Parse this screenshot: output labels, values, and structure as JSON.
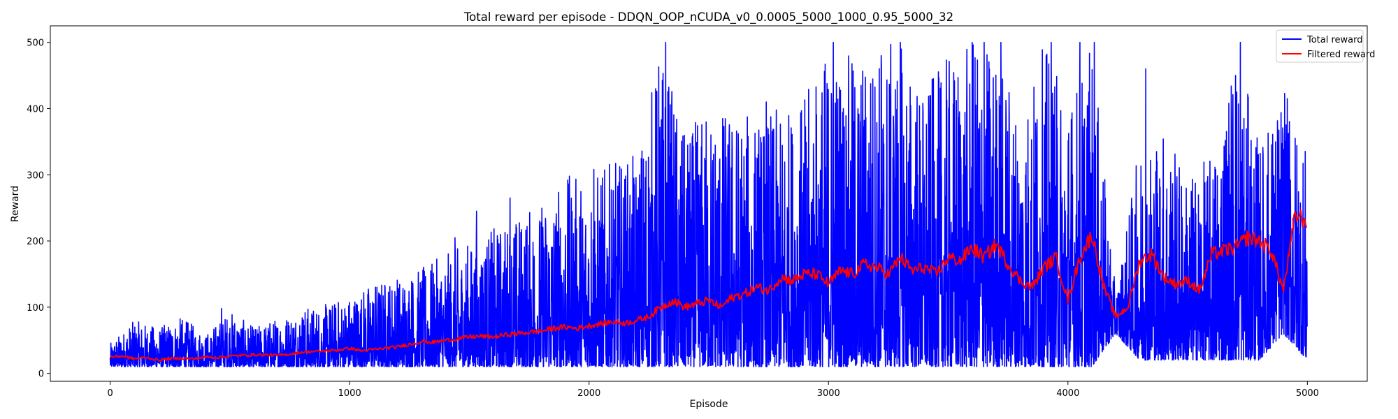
{
  "chart_data": {
    "type": "line",
    "title": "Total reward per episode - DDQN_OOP_nCUDA_v0_0.0005_5000_1000_0.95_5000_32",
    "xlabel": "Episode",
    "ylabel": "Reward",
    "xlim": [
      -250,
      5250
    ],
    "ylim": [
      -12,
      525
    ],
    "xticks": [
      0,
      1000,
      2000,
      3000,
      4000,
      5000
    ],
    "xtick_labels": [
      "0",
      "1000",
      "2000",
      "3000",
      "4000",
      "5000"
    ],
    "yticks": [
      0,
      100,
      200,
      300,
      400,
      500
    ],
    "ytick_labels": [
      "0",
      "100",
      "200",
      "300",
      "400",
      "500"
    ],
    "grid": false,
    "legend_position": "top-right",
    "colors": {
      "total": "#0000ff",
      "filtered": "#ff0000"
    },
    "series": [
      {
        "name": "Total reward",
        "color": "#0000ff",
        "episodes": 5000,
        "envelope": {
          "x": [
            0,
            100,
            200,
            300,
            400,
            500,
            600,
            700,
            800,
            900,
            1000,
            1100,
            1200,
            1300,
            1400,
            1500,
            1600,
            1700,
            1800,
            1900,
            2000,
            2100,
            2200,
            2300,
            2400,
            2500,
            2600,
            2700,
            2800,
            2900,
            3000,
            3100,
            3200,
            3300,
            3400,
            3500,
            3600,
            3700,
            3800,
            3900,
            4000,
            4100,
            4200,
            4300,
            4400,
            4500,
            4600,
            4700,
            4800,
            4900,
            5000
          ],
          "low": [
            10,
            10,
            10,
            10,
            10,
            10,
            10,
            10,
            10,
            10,
            10,
            10,
            10,
            10,
            10,
            10,
            10,
            10,
            10,
            10,
            10,
            10,
            10,
            10,
            10,
            10,
            10,
            10,
            10,
            10,
            10,
            10,
            10,
            10,
            10,
            10,
            10,
            10,
            10,
            10,
            10,
            10,
            60,
            20,
            20,
            20,
            20,
            20,
            20,
            60,
            20
          ],
          "high": [
            45,
            80,
            70,
            85,
            60,
            95,
            70,
            85,
            100,
            105,
            120,
            140,
            150,
            160,
            180,
            200,
            220,
            240,
            260,
            300,
            300,
            320,
            330,
            500,
            360,
            410,
            400,
            390,
            400,
            420,
            500,
            480,
            500,
            500,
            430,
            480,
            500,
            500,
            400,
            500,
            420,
            500,
            120,
            350,
            380,
            300,
            330,
            500,
            350,
            430,
            340
          ]
        },
        "spikes": [
          {
            "x": 180,
            "y": 65
          },
          {
            "x": 465,
            "y": 98
          },
          {
            "x": 1440,
            "y": 205
          },
          {
            "x": 1530,
            "y": 245
          },
          {
            "x": 1670,
            "y": 265
          },
          {
            "x": 2020,
            "y": 308
          },
          {
            "x": 2320,
            "y": 500
          },
          {
            "x": 2740,
            "y": 410
          },
          {
            "x": 3020,
            "y": 500
          },
          {
            "x": 3220,
            "y": 480
          },
          {
            "x": 3300,
            "y": 500
          },
          {
            "x": 3600,
            "y": 500
          },
          {
            "x": 3650,
            "y": 500
          },
          {
            "x": 3720,
            "y": 500
          },
          {
            "x": 3930,
            "y": 500
          },
          {
            "x": 4050,
            "y": 500
          },
          {
            "x": 4110,
            "y": 500
          },
          {
            "x": 4325,
            "y": 460
          },
          {
            "x": 4700,
            "y": 450
          },
          {
            "x": 4720,
            "y": 500
          },
          {
            "x": 4905,
            "y": 423
          }
        ]
      },
      {
        "name": "Filtered reward",
        "color": "#ff0000",
        "x": [
          0,
          50,
          100,
          150,
          200,
          250,
          300,
          350,
          400,
          450,
          500,
          550,
          600,
          650,
          700,
          750,
          800,
          850,
          900,
          950,
          1000,
          1050,
          1100,
          1150,
          1200,
          1250,
          1300,
          1350,
          1400,
          1450,
          1500,
          1550,
          1600,
          1650,
          1700,
          1750,
          1800,
          1850,
          1900,
          1950,
          2000,
          2050,
          2100,
          2150,
          2200,
          2250,
          2300,
          2350,
          2400,
          2450,
          2500,
          2550,
          2600,
          2650,
          2700,
          2750,
          2800,
          2850,
          2900,
          2950,
          3000,
          3050,
          3100,
          3150,
          3200,
          3250,
          3300,
          3350,
          3400,
          3450,
          3500,
          3550,
          3600,
          3650,
          3700,
          3750,
          3800,
          3850,
          3900,
          3950,
          4000,
          4050,
          4100,
          4150,
          4200,
          4250,
          4300,
          4350,
          4400,
          4450,
          4500,
          4550,
          4600,
          4650,
          4700,
          4750,
          4800,
          4850,
          4900,
          4950,
          5000
        ],
        "values": [
          25,
          26,
          22,
          24,
          20,
          22,
          23,
          22,
          25,
          24,
          26,
          27,
          28,
          28,
          27,
          29,
          32,
          33,
          34,
          35,
          38,
          34,
          36,
          38,
          40,
          44,
          48,
          47,
          50,
          52,
          55,
          56,
          55,
          58,
          60,
          62,
          64,
          68,
          70,
          68,
          72,
          75,
          78,
          76,
          80,
          86,
          100,
          110,
          100,
          105,
          110,
          100,
          115,
          120,
          130,
          125,
          145,
          140,
          150,
          150,
          135,
          155,
          150,
          165,
          160,
          150,
          175,
          155,
          160,
          150,
          175,
          170,
          190,
          175,
          195,
          165,
          140,
          130,
          160,
          175,
          110,
          175,
          210,
          130,
          85,
          100,
          170,
          180,
          145,
          135,
          140,
          125,
          180,
          185,
          190,
          205,
          200,
          185,
          125,
          240,
          230
        ]
      }
    ]
  }
}
